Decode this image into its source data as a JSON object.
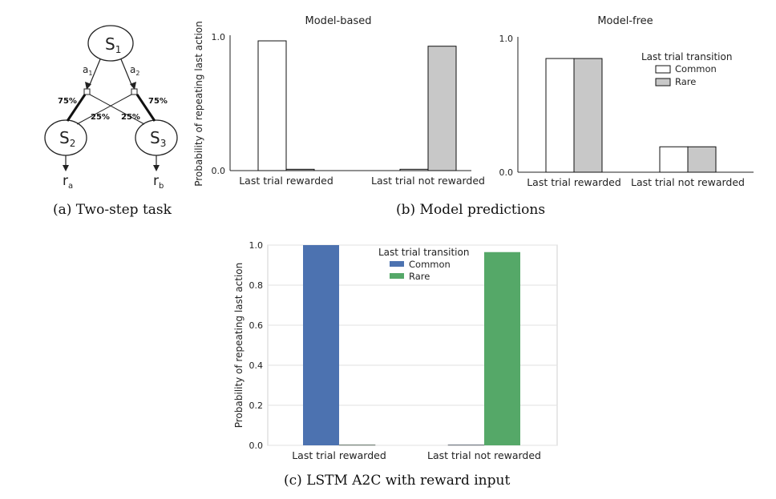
{
  "captions": {
    "a": "(a) Two-step task",
    "b": "(b) Model predictions",
    "c": "(c) LSTM A2C with reward input"
  },
  "diagram": {
    "nodes": {
      "s1": "S",
      "s1_sub": "1",
      "s2": "S",
      "s2_sub": "2",
      "s3": "S",
      "s3_sub": "3"
    },
    "actions": {
      "a1": "a",
      "a1_sub": "1",
      "a2": "a",
      "a2_sub": "2"
    },
    "rewards": {
      "ra": "r",
      "ra_sub": "a",
      "rb": "r",
      "rb_sub": "b"
    },
    "probs": {
      "p_left_common": "75%",
      "p_right_common": "75%",
      "p_left_rare": "25%",
      "p_right_rare": "25%"
    }
  },
  "chart_data": [
    {
      "id": "model-based",
      "type": "bar",
      "title": "Model-based",
      "ylabel": "Probability of repeating last action",
      "categories": [
        "Last trial rewarded",
        "Last trial not rewarded"
      ],
      "yticks": [
        "0.0",
        "1.0"
      ],
      "ylim": [
        0,
        1
      ],
      "series": [
        {
          "name": "Common",
          "values": [
            0.97,
            0.01
          ],
          "color": "#ffffff"
        },
        {
          "name": "Rare",
          "values": [
            0.01,
            0.93
          ],
          "color": "#c8c8c8"
        }
      ]
    },
    {
      "id": "model-free",
      "type": "bar",
      "title": "Model-free",
      "categories": [
        "Last trial rewarded",
        "Last trial not rewarded"
      ],
      "yticks": [
        "0.0",
        "1.0"
      ],
      "ylim": [
        0,
        1
      ],
      "legend": {
        "title": "Last trial transition",
        "position": "upper-right"
      },
      "series": [
        {
          "name": "Common",
          "values": [
            0.85,
            0.19
          ],
          "color": "#ffffff"
        },
        {
          "name": "Rare",
          "values": [
            0.85,
            0.19
          ],
          "color": "#c8c8c8"
        }
      ]
    },
    {
      "id": "lstm-a2c",
      "type": "bar",
      "ylabel": "Probability of repeating last action",
      "categories": [
        "Last trial rewarded",
        "Last trial not rewarded"
      ],
      "yticks": [
        "0.0",
        "0.2",
        "0.4",
        "0.6",
        "0.8",
        "1.0"
      ],
      "ylim": [
        0,
        1.0
      ],
      "grid": true,
      "legend": {
        "title": "Last trial transition",
        "position": "upper-center"
      },
      "series": [
        {
          "name": "Common",
          "values": [
            1.0,
            0.003
          ],
          "color": "#4c72b0"
        },
        {
          "name": "Rare",
          "values": [
            0.003,
            0.965
          ],
          "color": "#55a868"
        }
      ]
    }
  ]
}
